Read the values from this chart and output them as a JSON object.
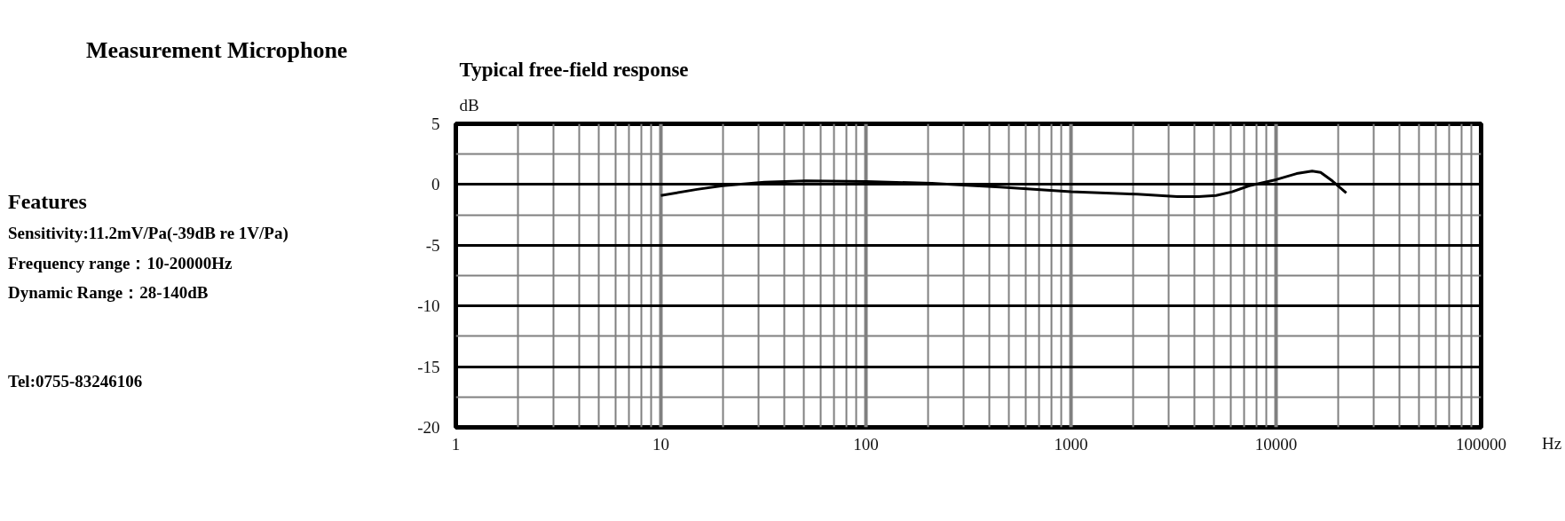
{
  "chart_data": {
    "type": "line",
    "title": "Typical free-field response",
    "ylabel": "dB",
    "xlabel": "Hz",
    "annotations": [
      "Measurement Microphone",
      "Features",
      "Sensitivity:11.2mV/Pa(-39dB re 1V/Pa)",
      "Frequency range：10-20000Hz",
      "Dynamic Range：28-140dB",
      "Tel:0755-83246106"
    ],
    "x": [
      10,
      15,
      20,
      32,
      51,
      100,
      210,
      270,
      450,
      1000,
      2100,
      3300,
      4200,
      5100,
      6100,
      7400,
      10000,
      12600,
      15000,
      16500,
      18800,
      22000
    ],
    "series": [
      {
        "color": "#000000",
        "values": [
          -0.9,
          -0.4,
          -0.1,
          0.2,
          0.3,
          0.25,
          0.1,
          0,
          -0.2,
          -0.6,
          -0.8,
          -1.0,
          -1.0,
          -0.9,
          -0.6,
          -0.1,
          0.4,
          0.9,
          1.1,
          1.0,
          0.3,
          -0.7
        ]
      }
    ],
    "log": "x",
    "xlim": [
      1,
      100000
    ],
    "xticks": [
      1,
      10,
      100,
      1000,
      10000,
      100000
    ],
    "ylim": [
      -20,
      5
    ],
    "yticks": [
      -20,
      -15,
      -10,
      -5,
      0,
      5
    ],
    "grid": true,
    "line_style": "solid"
  }
}
